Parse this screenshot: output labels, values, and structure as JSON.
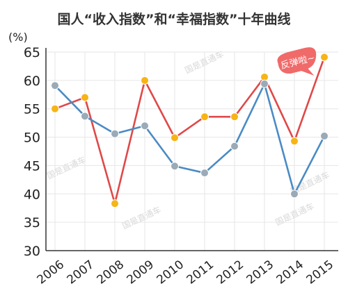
{
  "chart_data": {
    "type": "line",
    "title": "国人“收入指数”和“幸福指数”十年曲线",
    "ylabel": "(%)",
    "xlabel": "",
    "x": [
      "2006",
      "2007",
      "2008",
      "2009",
      "2010",
      "2011",
      "2012",
      "2013",
      "2014",
      "2015"
    ],
    "ylim": [
      30,
      65
    ],
    "yticks": [
      30,
      35,
      40,
      45,
      50,
      55,
      60,
      65
    ],
    "grid": true,
    "legend": "none",
    "series": [
      {
        "color": "#e04848",
        "marker_color": "#f6b416",
        "values": [
          55,
          57,
          38.3,
          60,
          49.9,
          53.6,
          53.6,
          60.6,
          49.3,
          64.1
        ]
      },
      {
        "color": "#4a8bc4",
        "marker_color": "#9aaab6",
        "values": [
          59.1,
          53.7,
          50.6,
          52,
          44.9,
          43.7,
          48.4,
          59.4,
          40,
          50.2
        ]
      }
    ]
  },
  "annotation": {
    "text": "反弹啦~",
    "color": "#f06a6a"
  },
  "watermark": {
    "text": "国是直通车"
  }
}
